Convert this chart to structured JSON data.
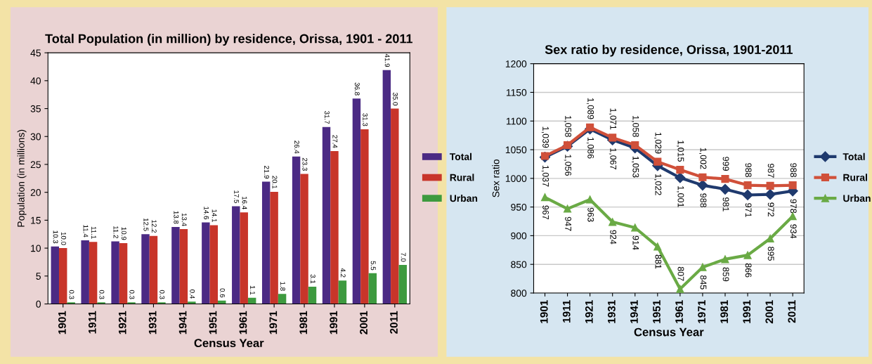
{
  "chart_data": [
    {
      "type": "bar",
      "title": "Total Population (in million) by residence, Orissa, 1901 - 2011",
      "xlabel": "Census Year",
      "ylabel": "Population (in millions)",
      "categories": [
        "1901",
        "1911",
        "1921",
        "1931",
        "1941",
        "1951",
        "1961",
        "1971",
        "1981",
        "1991",
        "2001",
        "2011"
      ],
      "series": [
        {
          "name": "Total",
          "color": "#4b2a84",
          "values": [
            10.3,
            11.4,
            11.2,
            12.5,
            13.8,
            14.6,
            17.5,
            21.9,
            26.4,
            31.7,
            36.8,
            41.9
          ],
          "value_labels": [
            "10.3",
            "11.4",
            "11.2",
            "12.5",
            "13.8",
            "14.6",
            "17.5",
            "21.9",
            "26.4",
            "31.7",
            "36.8",
            "41.9"
          ]
        },
        {
          "name": "Rural",
          "color": "#c8352a",
          "values": [
            10.0,
            11.1,
            10.9,
            12.2,
            13.4,
            14.1,
            16.4,
            20.1,
            23.3,
            27.4,
            31.3,
            35.0
          ],
          "value_labels": [
            "10.0",
            "11.1",
            "10.9",
            "12.2",
            "13.4",
            "14.1",
            "16.4",
            "20.1",
            "23.3",
            "27.4",
            "31.3",
            "35.0"
          ]
        },
        {
          "name": "Urban",
          "color": "#3d9a3f",
          "values": [
            0.3,
            0.3,
            0.3,
            0.3,
            0.4,
            0.6,
            1.1,
            1.8,
            3.1,
            4.2,
            5.5,
            7.0
          ],
          "value_labels": [
            "0.3",
            "0.3",
            "0.3",
            "0.3",
            "0.4",
            "0.6",
            "1.1",
            "1.8",
            "3.1",
            "4.2",
            "5.5",
            "7.0"
          ]
        }
      ],
      "ylim": [
        0,
        45
      ],
      "yticks": [
        0,
        5,
        10,
        15,
        20,
        25,
        30,
        35,
        40,
        45
      ],
      "legend": "right",
      "grid": false
    },
    {
      "type": "line",
      "title": "Sex ratio by residence, Orissa, 1901-2011",
      "xlabel": "Census Year",
      "ylabel": "Sex ratio",
      "categories": [
        "1901",
        "1911",
        "1921",
        "1931",
        "1941",
        "1951",
        "1961",
        "1971",
        "1981",
        "1991",
        "2001",
        "2011"
      ],
      "series": [
        {
          "name": "Total",
          "color": "#1f3a6e",
          "marker": "diamond",
          "values": [
            1037,
            1056,
            1086,
            1067,
            1053,
            1022,
            1001,
            988,
            981,
            971,
            972,
            978
          ],
          "value_labels": [
            "1,037",
            "1,056",
            "1,086",
            "1,067",
            "1,053",
            "1,022",
            "1,001",
            "988",
            "981",
            "971",
            "972",
            "978"
          ]
        },
        {
          "name": "Rural",
          "color": "#d0503a",
          "marker": "square",
          "values": [
            1039,
            1058,
            1089,
            1071,
            1058,
            1029,
            1015,
            1002,
            999,
            988,
            987,
            988
          ],
          "value_labels": [
            "1,039",
            "1,058",
            "1,089",
            "1,071",
            "1,058",
            "1,029",
            "1,015",
            "1,002",
            "999",
            "988",
            "987",
            "988"
          ]
        },
        {
          "name": "Urban",
          "color": "#6aaa45",
          "marker": "triangle",
          "values": [
            967,
            947,
            963,
            924,
            914,
            881,
            807,
            845,
            859,
            866,
            895,
            934
          ],
          "value_labels": [
            "967",
            "947",
            "963",
            "924",
            "914",
            "881",
            "807",
            "845",
            "859",
            "866",
            "895",
            "934"
          ]
        }
      ],
      "ylim": [
        800,
        1200
      ],
      "yticks": [
        800,
        850,
        900,
        950,
        1000,
        1050,
        1100,
        1150,
        1200
      ],
      "grid": "y",
      "legend": "right",
      "line_style": "solid"
    }
  ]
}
